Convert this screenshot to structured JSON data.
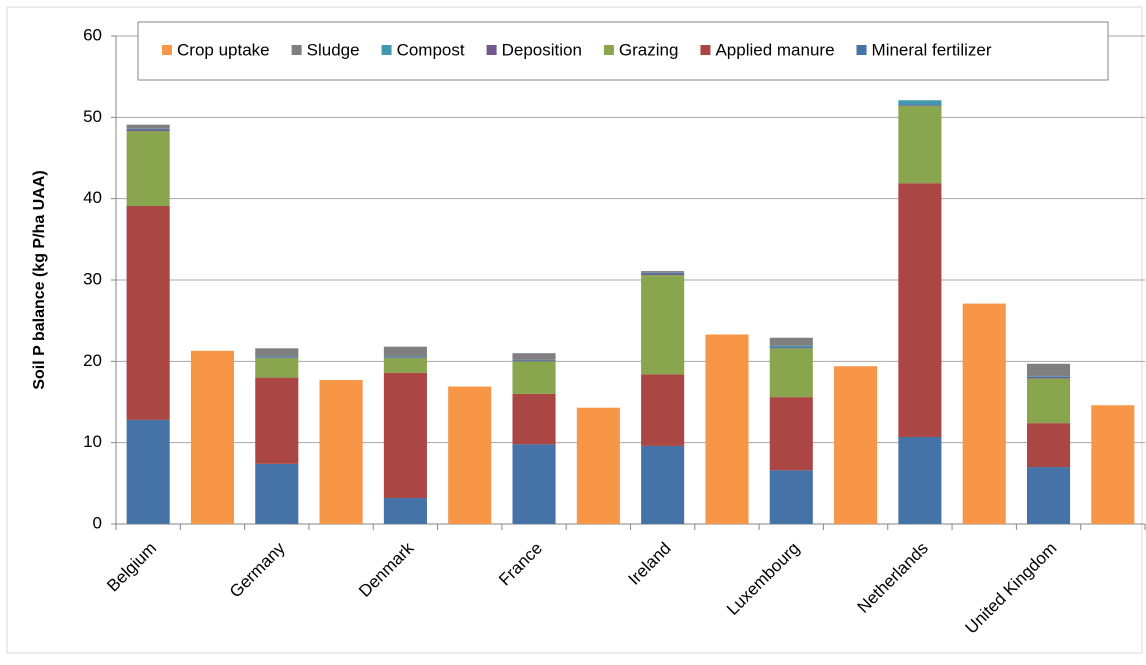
{
  "chart_data": {
    "type": "stacked_bar",
    "y_label": "Soil P balance (kg P/ha UAA)",
    "categories": [
      "Belgium",
      null,
      "Germany",
      null,
      "Denmark",
      null,
      "France",
      null,
      "Ireland",
      null,
      "Luxembourg",
      null,
      "Netherlands",
      null,
      "United Kingdom",
      null
    ],
    "series": [
      {
        "name": "Crop uptake",
        "color": "#f79646",
        "values": [
          null,
          21.3,
          null,
          17.7,
          null,
          16.9,
          null,
          14.3,
          null,
          23.3,
          null,
          19.4,
          null,
          27.1,
          null,
          14.6
        ]
      },
      {
        "name": "Sludge",
        "color": "#7f7f7f",
        "values": [
          0.5,
          null,
          1.0,
          null,
          1.2,
          null,
          0.8,
          null,
          0.2,
          null,
          1.0,
          null,
          0,
          null,
          1.5,
          null
        ]
      },
      {
        "name": "Compost",
        "color": "#4198af",
        "values": [
          0.1,
          null,
          0.1,
          null,
          0.1,
          null,
          0.1,
          null,
          0.1,
          null,
          0.2,
          null,
          0.6,
          null,
          0.1,
          null
        ]
      },
      {
        "name": "Deposition",
        "color": "#71588f",
        "values": [
          0.2,
          null,
          0.1,
          null,
          0.1,
          null,
          0.1,
          null,
          0.2,
          null,
          0.1,
          null,
          0.1,
          null,
          0.2,
          null
        ]
      },
      {
        "name": "Grazing",
        "color": "#89a54e",
        "values": [
          9.2,
          null,
          2.4,
          null,
          1.8,
          null,
          4.0,
          null,
          12.2,
          null,
          6.0,
          null,
          9.5,
          null,
          5.5,
          null
        ]
      },
      {
        "name": "Applied manure",
        "color": "#aa4643",
        "values": [
          26.3,
          null,
          10.6,
          null,
          15.4,
          null,
          6.2,
          null,
          8.8,
          null,
          9.0,
          null,
          31.2,
          null,
          5.4,
          null
        ]
      },
      {
        "name": "Mineral fertilizer",
        "color": "#4572a7",
        "values": [
          12.8,
          null,
          7.4,
          null,
          3.2,
          null,
          9.8,
          null,
          9.6,
          null,
          6.6,
          null,
          10.7,
          null,
          7.0,
          null
        ]
      }
    ],
    "ylim": [
      0,
      60
    ],
    "yticks": [
      0,
      10,
      20,
      30,
      40,
      50,
      60
    ],
    "grid": true,
    "legend": "top"
  }
}
